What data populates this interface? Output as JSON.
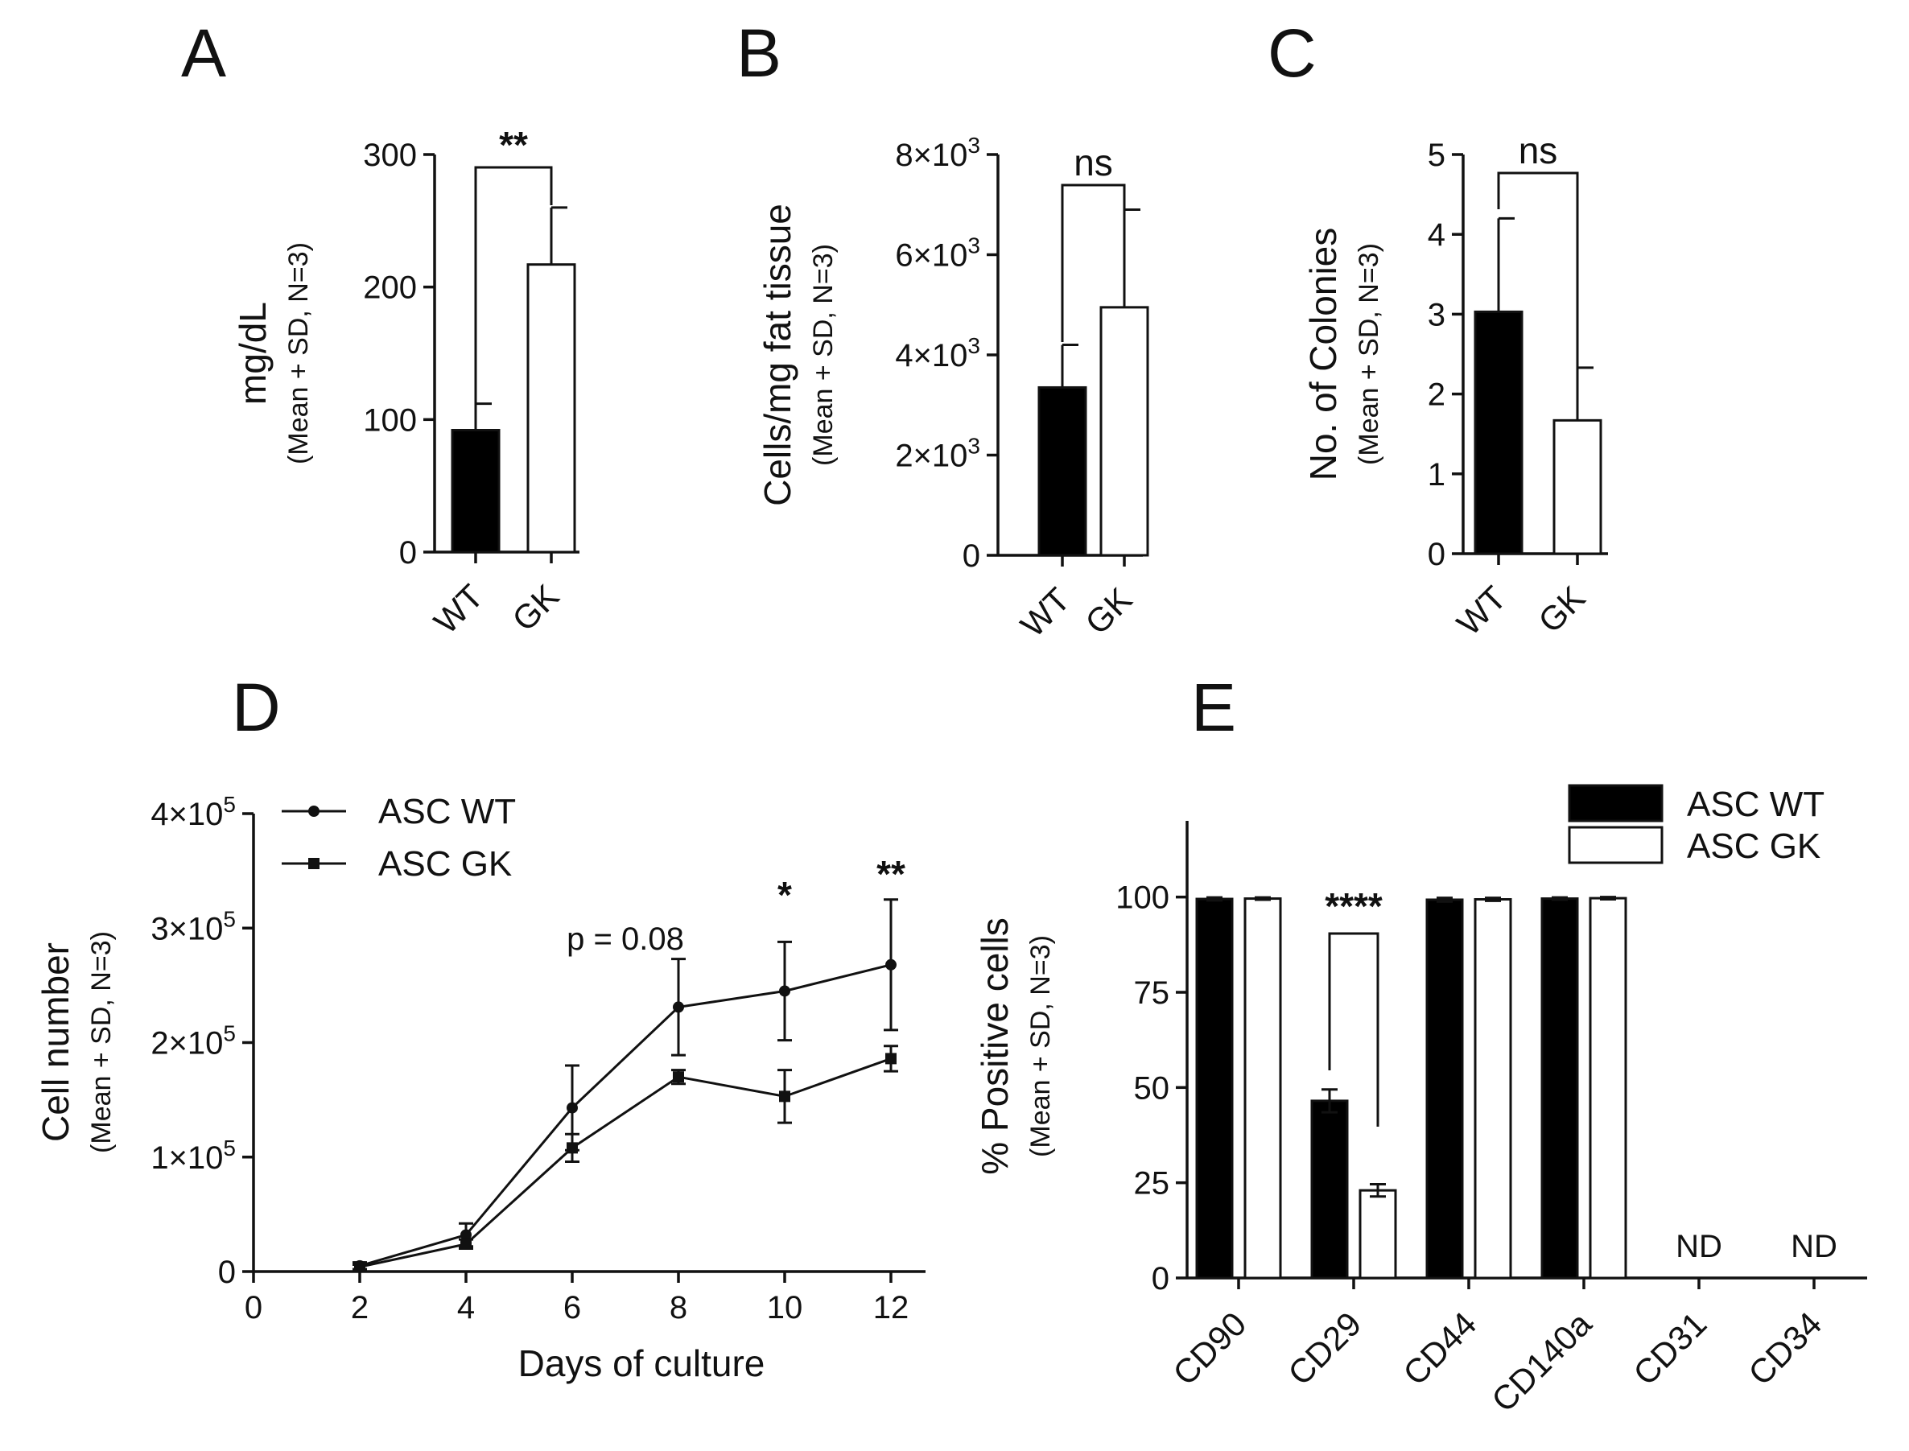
{
  "panels": {
    "A": {
      "letter": "A"
    },
    "B": {
      "letter": "B"
    },
    "C": {
      "letter": "C"
    },
    "D": {
      "letter": "D"
    },
    "E": {
      "letter": "E"
    }
  },
  "chart_data": [
    {
      "id": "A",
      "type": "bar",
      "categories": [
        "WT",
        "GK"
      ],
      "values": [
        92,
        217
      ],
      "errors": [
        20,
        43
      ],
      "fills": [
        "#000000",
        "#ffffff"
      ],
      "ylabel": "mg/dL",
      "ylabel2": "(Mean + SD, N=3)",
      "ylim": [
        0,
        300
      ],
      "yticks": [
        0,
        100,
        200,
        300
      ],
      "ytick_labels": [
        "0",
        "100",
        "200",
        "300"
      ],
      "significance": {
        "label": "**",
        "pair": [
          0,
          1
        ]
      }
    },
    {
      "id": "B",
      "type": "bar",
      "categories": [
        "WT",
        "GK"
      ],
      "values": [
        3350,
        4950
      ],
      "errors": [
        850,
        1950
      ],
      "fills": [
        "#000000",
        "#ffffff"
      ],
      "ylabel": "Cells/mg fat tissue",
      "ylabel2": "(Mean + SD, N=3)",
      "ylim": [
        0,
        8000
      ],
      "yticks": [
        0,
        2000,
        4000,
        6000,
        8000
      ],
      "ytick_labels": [
        "0",
        "2×10",
        "4×10",
        "6×10",
        "8×10"
      ],
      "ytick_sups": [
        "",
        "3",
        "3",
        "3",
        "3"
      ],
      "significance": {
        "label": "ns",
        "pair": [
          0,
          1
        ]
      }
    },
    {
      "id": "C",
      "type": "bar",
      "categories": [
        "WT",
        "GK"
      ],
      "values": [
        3.03,
        1.67
      ],
      "errors": [
        1.17,
        0.66
      ],
      "fills": [
        "#000000",
        "#ffffff"
      ],
      "ylabel": "No. of Colonies",
      "ylabel2": "(Mean + SD, N=3)",
      "ylim": [
        0,
        5
      ],
      "yticks": [
        0,
        1,
        2,
        3,
        4,
        5
      ],
      "ytick_labels": [
        "0",
        "1",
        "2",
        "3",
        "4",
        "5"
      ],
      "significance": {
        "label": "ns",
        "pair": [
          0,
          1
        ]
      }
    },
    {
      "id": "D",
      "type": "line",
      "x": [
        2,
        4,
        6,
        8,
        10,
        12
      ],
      "series": [
        {
          "name": "ASC WT",
          "marker": "circle",
          "values": [
            5000,
            32000,
            143000,
            231000,
            245000,
            268000
          ],
          "errors": [
            3000,
            10000,
            37000,
            42000,
            43000,
            57000
          ]
        },
        {
          "name": "ASC GK",
          "marker": "square",
          "values": [
            4000,
            24000,
            108000,
            170000,
            153000,
            186000
          ],
          "errors": [
            2000,
            4000,
            12000,
            6000,
            23000,
            11000
          ]
        }
      ],
      "xlabel": "Days of culture",
      "ylabel": "Cell number",
      "ylabel2": "(Mean + SD, N=3)",
      "xlim": [
        0,
        13
      ],
      "ylim": [
        0,
        400000
      ],
      "xticks": [
        0,
        2,
        4,
        6,
        8,
        10,
        12
      ],
      "xtick_labels": [
        "0",
        "2",
        "4",
        "6",
        "8",
        "10",
        "12"
      ],
      "yticks": [
        0,
        100000,
        200000,
        300000,
        400000
      ],
      "ytick_labels": [
        "0",
        "1×10",
        "2×10",
        "3×10",
        "4×10"
      ],
      "ytick_sups": [
        "",
        "5",
        "5",
        "5",
        "5"
      ],
      "annotations": [
        {
          "x": 7,
          "text": "p = 0.08"
        },
        {
          "x": 10,
          "text": "*"
        },
        {
          "x": 12,
          "text": "**"
        }
      ],
      "legend": "top-left"
    },
    {
      "id": "E",
      "type": "bar",
      "categories": [
        "CD90",
        "CD29",
        "CD44",
        "CD140a",
        "CD31",
        "CD34"
      ],
      "series": [
        {
          "name": "ASC WT",
          "fill": "#000000",
          "values": [
            99.5,
            46.5,
            99.3,
            99.6,
            null,
            null
          ],
          "errors": [
            0.4,
            3.0,
            0.5,
            0.3,
            null,
            null
          ]
        },
        {
          "name": "ASC GK",
          "fill": "#ffffff",
          "values": [
            99.6,
            23.0,
            99.4,
            99.7,
            null,
            null
          ],
          "errors": [
            0.3,
            1.6,
            0.4,
            0.3,
            null,
            null
          ]
        }
      ],
      "not_detected": {
        "label": "ND",
        "categories": [
          4,
          5
        ]
      },
      "ylabel": "%  Positive cells",
      "ylabel2": "(Mean + SD, N=3)",
      "ylim": [
        0,
        120
      ],
      "yticks": [
        0,
        25,
        50,
        75,
        100
      ],
      "ytick_labels": [
        "0",
        "25",
        "50",
        "75",
        "100"
      ],
      "significance": {
        "label": "****",
        "category": 1
      },
      "legend": "top-right"
    }
  ]
}
